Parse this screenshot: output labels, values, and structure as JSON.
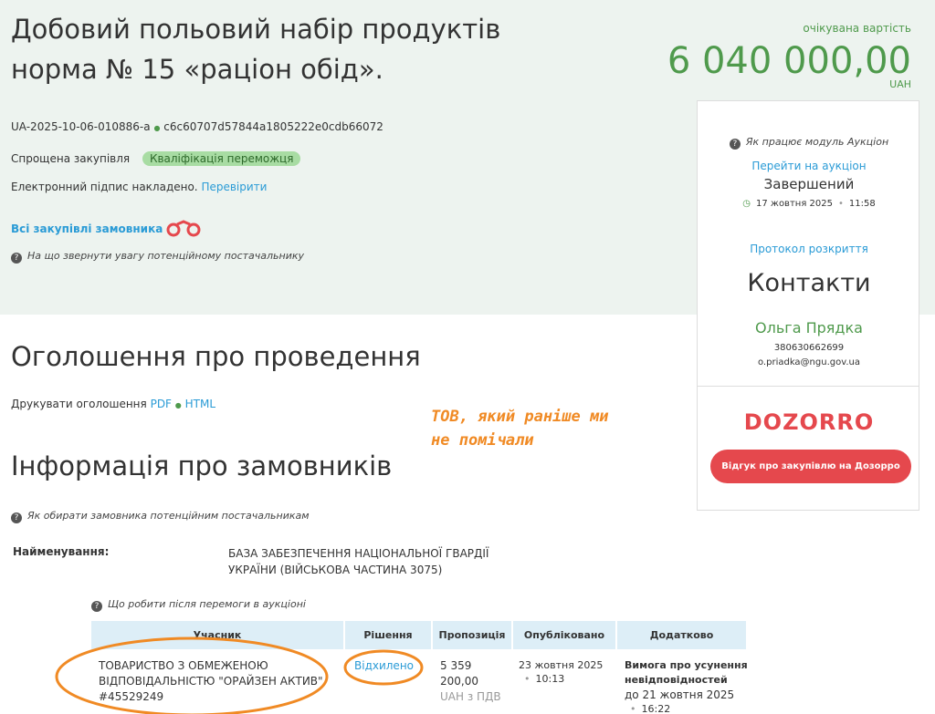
{
  "header": {
    "title_lines": [
      "Добовий польовий набір продуктів",
      "норма № 15 «раціон обід»."
    ],
    "expected_label": "очікувана вартість",
    "amount": "6 040 000,00",
    "currency": "UAH",
    "tender_id": "UA-2025-10-06-010886-a",
    "separator": "●",
    "hash": "c6c60707d57844a1805222e0cdb66072",
    "procedure": "Спрощена закупівля",
    "status_badge": "Кваліфікація переможця",
    "signature_text": "Електронний підпис накладено.",
    "signature_link": "Перевірити",
    "all_purchases": "Всі закупівлі замовника",
    "attention_hint": "На що звернути увагу потенційному постачальнику"
  },
  "sidebar": {
    "auction_help": "Як працює модуль Аукціон",
    "auction_link": "Перейти на аукціон",
    "auction_status": "Завершений",
    "auction_date": "17 жовтня 2025",
    "auction_time": "11:58",
    "protocol_link": "Протокол розкриття",
    "contacts_title": "Контакти",
    "contact_name": "Ольга Прядка",
    "contact_phone": "380630662699",
    "contact_email": "o.priadka@ngu.gov.ua",
    "logo": "DOZORRO",
    "feedback_button": "Відгук про закупівлю на Дозорро"
  },
  "announcement": {
    "title": "Оголошення про проведення",
    "print_label": "Друкувати оголошення",
    "pdf": "PDF",
    "separator": "●",
    "html": "HTML"
  },
  "annotation_lines": [
    "ТОВ, який раніше ми",
    "не помічали"
  ],
  "customers": {
    "title": "Інформація про замовників",
    "hint": "Як обирати замовника потенційним постачальникам",
    "name_label": "Найменування:",
    "name_lines": [
      "БАЗА ЗАБЕЗПЕЧЕННЯ НАЦІОНАЛЬНОЇ ГВАРДІЇ",
      "УКРАЇНИ (ВІЙСЬКОВА ЧАСТИНА 3075)"
    ]
  },
  "table": {
    "hint": "Що робити після перемоги в аукціоні",
    "headers": [
      "Учасник",
      "Рішення",
      "Пропозиція",
      "Опубліковано",
      "Додатково"
    ],
    "rows": [
      {
        "participant_lines": [
          "ТОВАРИСТВО З ОБМЕЖЕНОЮ",
          "ВІДПОВІДАЛЬНІСТЮ \"ОРАЙЗЕН АКТИВ\"",
          "#45529249"
        ],
        "decision": "Відхилено",
        "offer_lines": [
          "5 359",
          "200,00"
        ],
        "offer_currency": "UAH з ПДВ",
        "published_date": "23 жовтня 2025",
        "published_time": "10:13",
        "extra_title_lines": [
          "Вимога про усунення",
          "невідповідностей"
        ],
        "extra_deadline": "до 21 жовтня 2025",
        "extra_time": "16:22"
      }
    ]
  }
}
